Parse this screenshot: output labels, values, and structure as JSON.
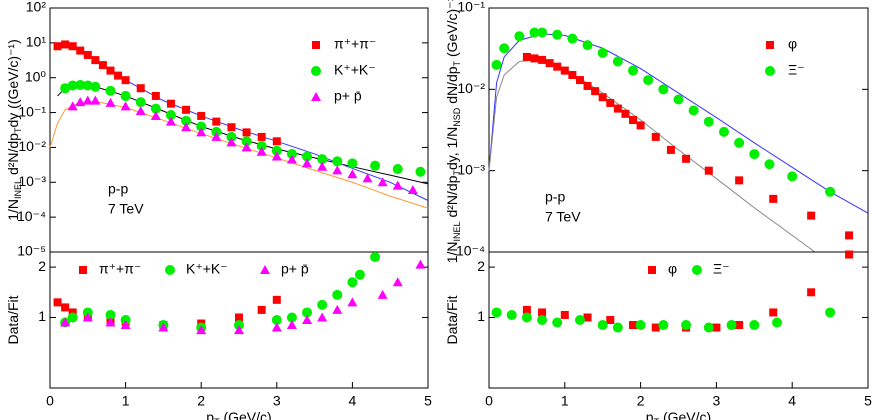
{
  "chart_data": [
    {
      "type": "scatter",
      "log_y": true,
      "xlim": [
        0,
        5
      ],
      "ylim": [
        1e-05,
        100
      ],
      "yticks": [
        {
          "value": 100,
          "label": "10²"
        },
        {
          "value": 10,
          "label": "10¹"
        },
        {
          "value": 1,
          "label": "10⁰"
        },
        {
          "value": 0.1,
          "label": "10⁻¹"
        },
        {
          "value": 0.01,
          "label": "10⁻²"
        },
        {
          "value": 0.001,
          "label": "10⁻³"
        },
        {
          "value": 0.0001,
          "label": "10⁻⁴"
        },
        {
          "value": 1e-05,
          "label": "10⁻⁵"
        }
      ],
      "y_label": [
        "1/N",
        "INEL",
        " d²N/dp",
        "T",
        "dy ((GeV/c)⁻¹)"
      ],
      "annotations": [
        "p-p",
        "7 TeV"
      ],
      "series": [
        {
          "name": "π⁺+π⁻",
          "color": "#ff0000",
          "marker": "square",
          "x": [
            0.1,
            0.2,
            0.3,
            0.4,
            0.5,
            0.6,
            0.7,
            0.8,
            0.9,
            1.0,
            1.2,
            1.4,
            1.6,
            1.8,
            2.0,
            2.2,
            2.4,
            2.6,
            2.8,
            3.0
          ],
          "values": [
            8,
            9,
            8,
            6,
            4.5,
            3.2,
            2.3,
            1.6,
            1.15,
            0.85,
            0.5,
            0.3,
            0.18,
            0.12,
            0.08,
            0.055,
            0.038,
            0.027,
            0.02,
            0.015
          ]
        },
        {
          "name": "K⁺+K⁻",
          "color": "#00ee00",
          "marker": "circle",
          "x": [
            0.2,
            0.3,
            0.4,
            0.5,
            0.6,
            0.8,
            1.0,
            1.2,
            1.4,
            1.6,
            1.8,
            2.0,
            2.2,
            2.4,
            2.6,
            2.8,
            3.0,
            3.2,
            3.4,
            3.6,
            3.8,
            4.0,
            4.3,
            4.6,
            4.9
          ],
          "values": [
            0.5,
            0.6,
            0.62,
            0.6,
            0.55,
            0.42,
            0.3,
            0.2,
            0.13,
            0.085,
            0.058,
            0.04,
            0.028,
            0.02,
            0.015,
            0.011,
            0.008,
            0.0065,
            0.0055,
            0.0046,
            0.004,
            0.0035,
            0.003,
            0.0024,
            0.002
          ]
        },
        {
          "name": "p+ p̄",
          "color": "#ff00ff",
          "marker": "triangle",
          "x": [
            0.3,
            0.4,
            0.5,
            0.6,
            0.8,
            1.0,
            1.2,
            1.4,
            1.6,
            1.8,
            2.0,
            2.2,
            2.4,
            2.6,
            2.8,
            3.0,
            3.2,
            3.4,
            3.6,
            3.8,
            4.0,
            4.2,
            4.4,
            4.6,
            4.8
          ],
          "values": [
            0.15,
            0.2,
            0.22,
            0.22,
            0.19,
            0.15,
            0.11,
            0.08,
            0.055,
            0.038,
            0.027,
            0.02,
            0.014,
            0.01,
            0.0075,
            0.0055,
            0.0045,
            0.0035,
            0.0028,
            0.0022,
            0.0017,
            0.0013,
            0.001,
            0.0008,
            0.0006
          ]
        }
      ],
      "curves": [
        {
          "color": "#ff9933",
          "x": [
            0,
            0.1,
            0.2,
            0.4,
            0.6,
            1.0,
            1.5,
            2.0,
            2.5,
            3.0,
            3.5,
            4.0,
            4.5,
            5.0
          ],
          "values": [
            0.01,
            0.05,
            0.12,
            0.2,
            0.21,
            0.14,
            0.06,
            0.025,
            0.011,
            0.005,
            0.0022,
            0.001,
            0.0004,
            0.00018
          ]
        },
        {
          "color": "#000000",
          "x": [
            0.1,
            0.2,
            0.4,
            0.6,
            1.0,
            1.5,
            2.0,
            2.5,
            3.0,
            3.5,
            4.0,
            4.5,
            5.0
          ],
          "values": [
            0.3,
            0.5,
            0.6,
            0.55,
            0.3,
            0.11,
            0.04,
            0.018,
            0.009,
            0.005,
            0.0028,
            0.0016,
            0.0009
          ]
        },
        {
          "color": "#3333ff",
          "x": [
            0.1,
            0.2,
            0.4,
            0.6,
            1.0,
            1.5,
            2.0,
            2.5,
            3.0,
            3.5,
            4.0,
            4.5,
            5.0
          ],
          "values": [
            8,
            9,
            6,
            3.2,
            0.85,
            0.22,
            0.08,
            0.033,
            0.015,
            0.0065,
            0.0025,
            0.001,
            0.0003
          ]
        }
      ]
    },
    {
      "type": "scatter",
      "log_y": false,
      "xlim": [
        0,
        5
      ],
      "ylim": [
        -0.4,
        2.3
      ],
      "yticks": [
        1,
        2
      ],
      "xticks": [
        0,
        1,
        2,
        3,
        4,
        5
      ],
      "y_label": [
        "Data/Fit"
      ],
      "x_label": [
        "p",
        "T",
        " (GeV/c)"
      ],
      "series": [
        {
          "name": "π⁺+π⁻",
          "color": "#ff0000",
          "marker": "square",
          "x": [
            0.1,
            0.2,
            0.3,
            0.5,
            0.8,
            1.0,
            1.5,
            2.0,
            2.5,
            2.8,
            3.0
          ],
          "values": [
            1.3,
            1.2,
            1.1,
            1.0,
            0.95,
            0.92,
            0.85,
            0.88,
            1.0,
            1.15,
            1.35
          ]
        },
        {
          "name": "K⁺+K⁻",
          "color": "#00ee00",
          "marker": "circle",
          "x": [
            0.2,
            0.3,
            0.5,
            0.8,
            1.0,
            1.5,
            2.0,
            2.5,
            3.0,
            3.2,
            3.4,
            3.6,
            3.8,
            4.0,
            4.1,
            4.3
          ],
          "values": [
            0.9,
            1.0,
            1.1,
            1.05,
            0.95,
            0.85,
            0.8,
            0.85,
            0.95,
            1.0,
            1.1,
            1.25,
            1.45,
            1.7,
            1.85,
            2.2
          ]
        },
        {
          "name": "p+ p̄",
          "color": "#ff00ff",
          "marker": "triangle",
          "x": [
            0.2,
            0.5,
            0.8,
            1.0,
            1.5,
            2.0,
            2.5,
            3.0,
            3.2,
            3.4,
            3.6,
            3.8,
            4.0,
            4.4,
            4.6,
            4.9
          ],
          "values": [
            0.9,
            1.0,
            0.9,
            0.85,
            0.8,
            0.75,
            0.75,
            0.8,
            0.85,
            0.95,
            1.0,
            1.15,
            1.3,
            1.45,
            1.7,
            2.05
          ]
        }
      ]
    },
    {
      "type": "scatter",
      "log_y": true,
      "xlim": [
        0,
        5
      ],
      "ylim": [
        0.0001,
        0.1
      ],
      "yticks": [
        {
          "value": 0.1,
          "label": "10⁻¹"
        },
        {
          "value": 0.01,
          "label": "10⁻²"
        },
        {
          "value": 0.001,
          "label": "10⁻³"
        },
        {
          "value": 0.0001,
          "label": "10⁻⁴"
        }
      ],
      "y_label": [
        "1/N",
        "INEL",
        " d²N/dp",
        "T",
        "dy, 1/N",
        "NSD",
        " dN/dp",
        "T",
        " (GeV/c)⁻¹"
      ],
      "annotations": [
        "p-p",
        "7 TeV"
      ],
      "series": [
        {
          "name": "φ",
          "color": "#ff0000",
          "marker": "square",
          "x": [
            0.5,
            0.6,
            0.7,
            0.8,
            0.9,
            1.0,
            1.1,
            1.2,
            1.3,
            1.4,
            1.5,
            1.6,
            1.7,
            1.8,
            1.9,
            2.0,
            2.2,
            2.4,
            2.6,
            2.9,
            3.3,
            3.75,
            4.25,
            4.75
          ],
          "values": [
            0.025,
            0.024,
            0.023,
            0.021,
            0.019,
            0.017,
            0.015,
            0.013,
            0.011,
            0.0095,
            0.008,
            0.0068,
            0.0058,
            0.005,
            0.0042,
            0.0036,
            0.0026,
            0.0018,
            0.0014,
            0.001,
            0.00076,
            0.00045,
            0.00028,
            0.00016
          ]
        },
        {
          "name": "Ξ⁻",
          "color": "#00ee00",
          "marker": "circle",
          "x": [
            0.1,
            0.2,
            0.4,
            0.6,
            0.7,
            0.9,
            1.1,
            1.3,
            1.5,
            1.7,
            1.9,
            2.1,
            2.3,
            2.5,
            2.7,
            2.9,
            3.1,
            3.3,
            3.5,
            3.7,
            4.0,
            4.5
          ],
          "values": [
            0.02,
            0.032,
            0.045,
            0.05,
            0.05,
            0.047,
            0.042,
            0.035,
            0.028,
            0.022,
            0.017,
            0.013,
            0.01,
            0.0075,
            0.0055,
            0.004,
            0.003,
            0.0022,
            0.0016,
            0.0012,
            0.00085,
            0.00055
          ]
        }
      ],
      "curves": [
        {
          "color": "#3333ff",
          "x": [
            0,
            0.1,
            0.2,
            0.4,
            0.7,
            1.0,
            1.5,
            2.0,
            2.5,
            3.0,
            3.5,
            4.0,
            4.5,
            5.0
          ],
          "values": [
            0.001,
            0.012,
            0.025,
            0.04,
            0.048,
            0.046,
            0.032,
            0.018,
            0.009,
            0.0045,
            0.0022,
            0.0011,
            0.00055,
            0.0003
          ]
        },
        {
          "color": "#888888",
          "x": [
            0,
            0.1,
            0.2,
            0.4,
            0.6,
            1.0,
            1.5,
            2.0,
            2.5,
            3.0,
            3.5,
            4.0,
            4.3
          ],
          "values": [
            0.001,
            0.008,
            0.015,
            0.022,
            0.023,
            0.018,
            0.009,
            0.0042,
            0.0018,
            0.0008,
            0.00035,
            0.00016,
            0.0001
          ]
        }
      ]
    },
    {
      "type": "scatter",
      "log_y": false,
      "xlim": [
        0,
        5
      ],
      "ylim": [
        -0.4,
        2.3
      ],
      "yticks": [
        1,
        2
      ],
      "xticks": [
        0,
        1,
        2,
        3,
        4,
        5
      ],
      "y_label": [
        "Data/Fit"
      ],
      "x_label": [
        "p",
        "T",
        " (GeV/c)"
      ],
      "series": [
        {
          "name": "φ",
          "color": "#ff0000",
          "marker": "square",
          "x": [
            0.5,
            0.7,
            1.0,
            1.3,
            1.6,
            1.9,
            2.2,
            2.6,
            3.0,
            3.3,
            3.75,
            4.25,
            4.75
          ],
          "values": [
            1.15,
            1.1,
            1.05,
            1.0,
            0.95,
            0.85,
            0.8,
            0.8,
            0.8,
            0.85,
            1.1,
            1.5,
            2.25
          ]
        },
        {
          "name": "Ξ⁻",
          "color": "#00ee00",
          "marker": "circle",
          "x": [
            0.1,
            0.3,
            0.5,
            0.7,
            0.9,
            1.2,
            1.5,
            1.7,
            2.0,
            2.3,
            2.6,
            2.9,
            3.2,
            3.5,
            3.8,
            4.5
          ],
          "values": [
            1.1,
            1.05,
            1.0,
            0.95,
            0.9,
            0.95,
            0.85,
            0.8,
            0.85,
            0.85,
            0.85,
            0.8,
            0.85,
            0.85,
            0.9,
            1.1
          ]
        }
      ]
    }
  ]
}
